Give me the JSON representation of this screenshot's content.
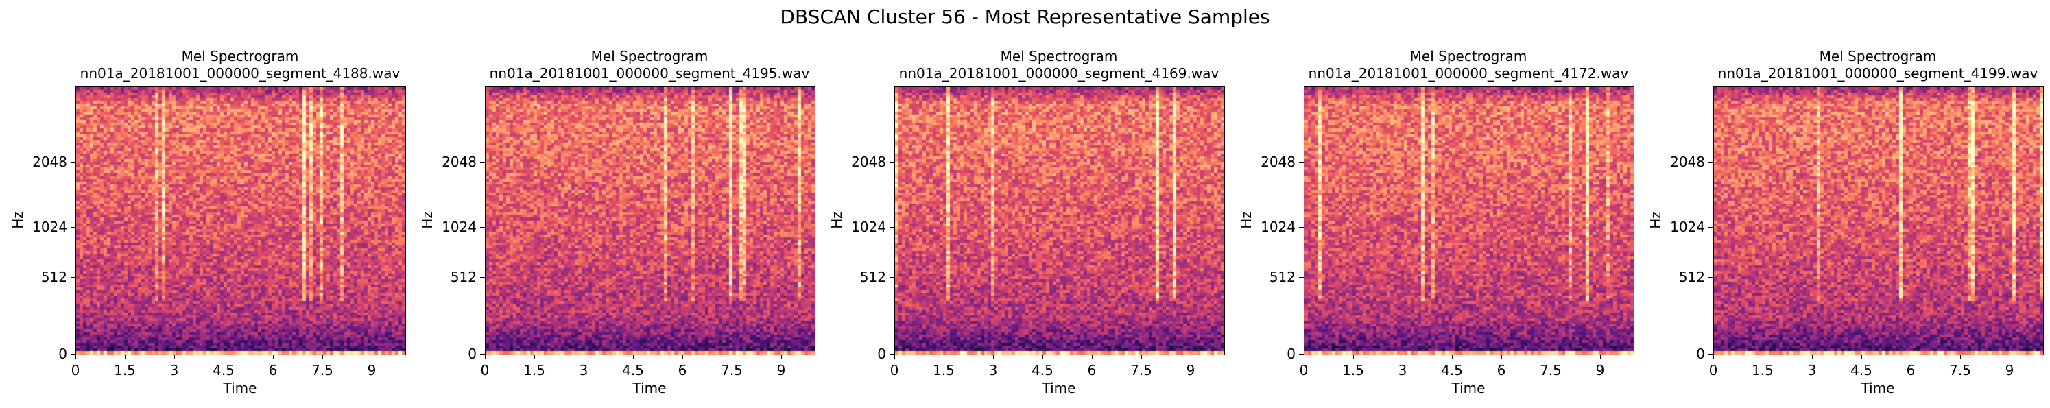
{
  "figure": {
    "title": "DBSCAN Cluster 56 - Most Representative Samples"
  },
  "colormap": "magma",
  "chart_data": [
    {
      "type": "heatmap",
      "title": "Mel Spectrogram\nnn01a_20181001_000000_segment_4188.wav",
      "xlabel": "Time",
      "ylabel": "Hz",
      "x_ticks": [
        "0",
        "1.5",
        "3",
        "4.5",
        "6",
        "7.5",
        "9"
      ],
      "x_tick_values": [
        0,
        1.5,
        3,
        4.5,
        6,
        7.5,
        9
      ],
      "xlim": [
        0,
        10
      ],
      "y_scale": "mel",
      "y_ticks": [
        "0",
        "512",
        "1024",
        "2048"
      ],
      "y_tick_values": [
        0,
        512,
        1024,
        2048
      ],
      "ylim": [
        0,
        4000
      ]
    },
    {
      "type": "heatmap",
      "title": "Mel Spectrogram\nnn01a_20181001_000000_segment_4195.wav",
      "xlabel": "Time",
      "ylabel": "Hz",
      "x_ticks": [
        "0",
        "1.5",
        "3",
        "4.5",
        "6",
        "7.5",
        "9"
      ],
      "x_tick_values": [
        0,
        1.5,
        3,
        4.5,
        6,
        7.5,
        9
      ],
      "xlim": [
        0,
        10
      ],
      "y_scale": "mel",
      "y_ticks": [
        "0",
        "512",
        "1024",
        "2048"
      ],
      "y_tick_values": [
        0,
        512,
        1024,
        2048
      ],
      "ylim": [
        0,
        4000
      ]
    },
    {
      "type": "heatmap",
      "title": "Mel Spectrogram\nnn01a_20181001_000000_segment_4169.wav",
      "xlabel": "Time",
      "ylabel": "Hz",
      "x_ticks": [
        "0",
        "1.5",
        "3",
        "4.5",
        "6",
        "7.5",
        "9"
      ],
      "x_tick_values": [
        0,
        1.5,
        3,
        4.5,
        6,
        7.5,
        9
      ],
      "xlim": [
        0,
        10
      ],
      "y_scale": "mel",
      "y_ticks": [
        "0",
        "512",
        "1024",
        "2048"
      ],
      "y_tick_values": [
        0,
        512,
        1024,
        2048
      ],
      "ylim": [
        0,
        4000
      ]
    },
    {
      "type": "heatmap",
      "title": "Mel Spectrogram\nnn01a_20181001_000000_segment_4172.wav",
      "xlabel": "Time",
      "ylabel": "Hz",
      "x_ticks": [
        "0",
        "1.5",
        "3",
        "4.5",
        "6",
        "7.5",
        "9"
      ],
      "x_tick_values": [
        0,
        1.5,
        3,
        4.5,
        6,
        7.5,
        9
      ],
      "xlim": [
        0,
        10
      ],
      "y_scale": "mel",
      "y_ticks": [
        "0",
        "512",
        "1024",
        "2048"
      ],
      "y_tick_values": [
        0,
        512,
        1024,
        2048
      ],
      "ylim": [
        0,
        4000
      ]
    },
    {
      "type": "heatmap",
      "title": "Mel Spectrogram\nnn01a_20181001_000000_segment_4199.wav",
      "xlabel": "Time",
      "ylabel": "Hz",
      "x_ticks": [
        "0",
        "1.5",
        "3",
        "4.5",
        "6",
        "7.5",
        "9"
      ],
      "x_tick_values": [
        0,
        1.5,
        3,
        4.5,
        6,
        7.5,
        9
      ],
      "xlim": [
        0,
        10
      ],
      "y_scale": "mel",
      "y_ticks": [
        "0",
        "512",
        "1024",
        "2048"
      ],
      "y_tick_values": [
        0,
        512,
        1024,
        2048
      ],
      "ylim": [
        0,
        4000
      ]
    }
  ]
}
